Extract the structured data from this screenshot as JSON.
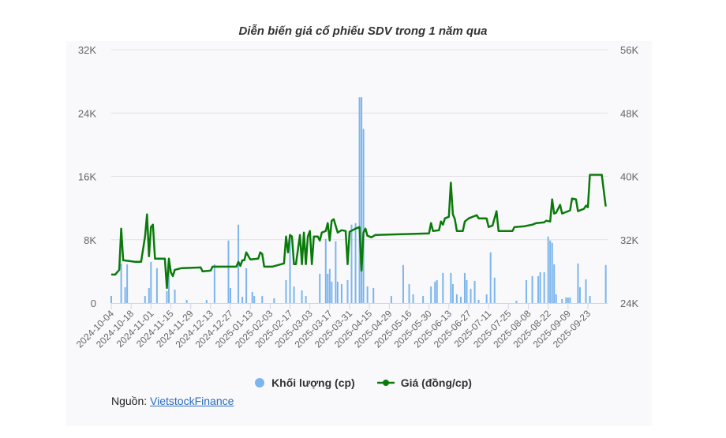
{
  "chart_data": {
    "type": "bar+line",
    "title": "Diễn biến giá cổ phiếu SDV trong 1 năm qua",
    "x_unit": "trading day index",
    "x_range": [
      0,
      250
    ],
    "x_tick_step": 10,
    "x_tick_labels": [
      "2024-10-04",
      "2024-10-18",
      "2024-11-01",
      "2024-11-15",
      "2024-11-29",
      "2024-12-13",
      "2024-12-27",
      "2025-01-13",
      "2025-02-03",
      "2025-02-17",
      "2025-03-03",
      "2025-03-17",
      "2025-03-31",
      "2025-04-15",
      "2025-04-29",
      "2025-05-16",
      "2025-05-30",
      "2025-06-13",
      "2025-06-27",
      "2025-07-11",
      "2025-07-25",
      "2025-08-08",
      "2025-08-22",
      "2025-09-09",
      "2025-09-23"
    ],
    "left_axis": {
      "ylim": [
        0,
        32000
      ],
      "ticks": [
        "0",
        "8K",
        "16K",
        "24K",
        "32K"
      ],
      "tick_values": [
        0,
        8000,
        16000,
        24000,
        32000
      ]
    },
    "right_axis": {
      "ylim": [
        24000,
        56000
      ],
      "ticks": [
        "24K",
        "32K",
        "40K",
        "48K",
        "56K"
      ],
      "tick_values": [
        24000,
        32000,
        40000,
        48000,
        56000
      ]
    },
    "grid": true,
    "legend_position": "bottom",
    "series": [
      {
        "name": "Khối lượng (cp)",
        "type": "bar",
        "axis": "left",
        "color": "#7cb5ec",
        "points": [
          [
            0,
            900
          ],
          [
            5,
            5000
          ],
          [
            7,
            2000
          ],
          [
            8,
            4900
          ],
          [
            17,
            900
          ],
          [
            19,
            1900
          ],
          [
            20,
            5200
          ],
          [
            23,
            4400
          ],
          [
            28,
            1500
          ],
          [
            29,
            4900
          ],
          [
            32,
            1700
          ],
          [
            38,
            400
          ],
          [
            48,
            400
          ],
          [
            52,
            4900
          ],
          [
            59,
            7900
          ],
          [
            60,
            1900
          ],
          [
            64,
            9900
          ],
          [
            66,
            800
          ],
          [
            68,
            4400
          ],
          [
            71,
            1400
          ],
          [
            72,
            900
          ],
          [
            76,
            900
          ],
          [
            82,
            600
          ],
          [
            88,
            2900
          ],
          [
            90,
            8100
          ],
          [
            92,
            2100
          ],
          [
            96,
            1600
          ],
          [
            98,
            900
          ],
          [
            105,
            3700
          ],
          [
            108,
            8100
          ],
          [
            109,
            3700
          ],
          [
            110,
            4300
          ],
          [
            111,
            2700
          ],
          [
            113,
            7800
          ],
          [
            114,
            2700
          ],
          [
            116,
            2400
          ],
          [
            119,
            2900
          ],
          [
            121,
            9900
          ],
          [
            123,
            10100
          ],
          [
            125,
            26000
          ],
          [
            126,
            26000
          ],
          [
            127,
            22000
          ],
          [
            129,
            2100
          ],
          [
            132,
            1900
          ],
          [
            141,
            900
          ],
          [
            147,
            4800
          ],
          [
            150,
            2400
          ],
          [
            152,
            1100
          ],
          [
            157,
            900
          ],
          [
            161,
            2100
          ],
          [
            163,
            2700
          ],
          [
            164,
            2900
          ],
          [
            167,
            3800
          ],
          [
            171,
            3800
          ],
          [
            172,
            2400
          ],
          [
            174,
            1100
          ],
          [
            176,
            800
          ],
          [
            178,
            3800
          ],
          [
            179,
            2900
          ],
          [
            181,
            1800
          ],
          [
            183,
            2800
          ],
          [
            185,
            400
          ],
          [
            189,
            1100
          ],
          [
            191,
            6400
          ],
          [
            193,
            3200
          ],
          [
            204,
            300
          ],
          [
            209,
            2900
          ],
          [
            212,
            3400
          ],
          [
            215,
            3400
          ],
          [
            216,
            3900
          ],
          [
            218,
            3900
          ],
          [
            220,
            8400
          ],
          [
            221,
            7900
          ],
          [
            222,
            7600
          ],
          [
            223,
            4900
          ],
          [
            224,
            1100
          ],
          [
            227,
            500
          ],
          [
            229,
            700
          ],
          [
            230,
            700
          ],
          [
            231,
            700
          ],
          [
            235,
            5000
          ],
          [
            236,
            2000
          ],
          [
            239,
            3000
          ],
          [
            241,
            900
          ],
          [
            249,
            4800
          ]
        ]
      },
      {
        "name": "Giá (đồng/cp)",
        "type": "line",
        "axis": "right",
        "color": "#0a7a0a",
        "points": [
          [
            0,
            27600
          ],
          [
            2,
            27600
          ],
          [
            4,
            28200
          ],
          [
            5,
            33400
          ],
          [
            6,
            29400
          ],
          [
            12,
            29200
          ],
          [
            15,
            29200
          ],
          [
            17,
            32400
          ],
          [
            18,
            35200
          ],
          [
            19,
            29900
          ],
          [
            20,
            33600
          ],
          [
            21,
            33900
          ],
          [
            22,
            29600
          ],
          [
            27,
            29600
          ],
          [
            28,
            25900
          ],
          [
            29,
            29600
          ],
          [
            30,
            27900
          ],
          [
            31,
            27400
          ],
          [
            32,
            28200
          ],
          [
            35,
            28400
          ],
          [
            45,
            28500
          ],
          [
            46,
            28000
          ],
          [
            50,
            28100
          ],
          [
            51,
            28600
          ],
          [
            63,
            28600
          ],
          [
            64,
            29200
          ],
          [
            65,
            28700
          ],
          [
            66,
            29400
          ],
          [
            67,
            29400
          ],
          [
            68,
            30400
          ],
          [
            70,
            29500
          ],
          [
            74,
            29600
          ],
          [
            75,
            30400
          ],
          [
            76,
            30200
          ],
          [
            77,
            28600
          ],
          [
            81,
            28600
          ],
          [
            87,
            29000
          ],
          [
            88,
            32400
          ],
          [
            89,
            30400
          ],
          [
            90,
            32600
          ],
          [
            91,
            32400
          ],
          [
            92,
            28900
          ],
          [
            93,
            28900
          ],
          [
            95,
            32600
          ],
          [
            96,
            28900
          ],
          [
            97,
            32900
          ],
          [
            98,
            28900
          ],
          [
            99,
            32400
          ],
          [
            100,
            33100
          ],
          [
            101,
            28900
          ],
          [
            102,
            32400
          ],
          [
            104,
            32400
          ],
          [
            105,
            31900
          ],
          [
            106,
            32900
          ],
          [
            108,
            33100
          ],
          [
            109,
            34100
          ],
          [
            110,
            31900
          ],
          [
            111,
            34400
          ],
          [
            112,
            34600
          ],
          [
            114,
            32900
          ],
          [
            116,
            33200
          ],
          [
            118,
            33100
          ],
          [
            119,
            28900
          ],
          [
            120,
            33000
          ],
          [
            123,
            33400
          ],
          [
            125,
            33600
          ],
          [
            126,
            28100
          ],
          [
            127,
            32900
          ],
          [
            128,
            33400
          ],
          [
            129,
            32500
          ],
          [
            131,
            32300
          ],
          [
            133,
            32600
          ],
          [
            147,
            32700
          ],
          [
            160,
            32800
          ],
          [
            161,
            34100
          ],
          [
            162,
            33100
          ],
          [
            165,
            33200
          ],
          [
            166,
            34300
          ],
          [
            167,
            33900
          ],
          [
            168,
            34700
          ],
          [
            170,
            34900
          ],
          [
            171,
            39200
          ],
          [
            172,
            35200
          ],
          [
            173,
            34600
          ],
          [
            174,
            33100
          ],
          [
            177,
            33100
          ],
          [
            178,
            34300
          ],
          [
            180,
            34700
          ],
          [
            184,
            35100
          ],
          [
            185,
            34700
          ],
          [
            189,
            34700
          ],
          [
            190,
            33600
          ],
          [
            192,
            33800
          ],
          [
            194,
            35600
          ],
          [
            195,
            33100
          ],
          [
            202,
            33100
          ],
          [
            203,
            33600
          ],
          [
            208,
            33700
          ],
          [
            212,
            33900
          ],
          [
            214,
            34100
          ],
          [
            218,
            34200
          ],
          [
            219,
            34400
          ],
          [
            221,
            34300
          ],
          [
            222,
            37100
          ],
          [
            223,
            35300
          ],
          [
            224,
            35400
          ],
          [
            226,
            36400
          ],
          [
            227,
            35300
          ],
          [
            231,
            35700
          ],
          [
            232,
            37200
          ],
          [
            234,
            37100
          ],
          [
            235,
            35600
          ],
          [
            238,
            35900
          ],
          [
            239,
            36300
          ],
          [
            240,
            36100
          ],
          [
            241,
            40200
          ],
          [
            247,
            40200
          ],
          [
            249,
            36200
          ]
        ]
      }
    ]
  },
  "legend": {
    "volume_label": "Khối lượng (cp)",
    "price_label": "Giá (đồng/cp)"
  },
  "source": {
    "prefix": "Nguồn: ",
    "link_text": "VietstockFinance"
  }
}
